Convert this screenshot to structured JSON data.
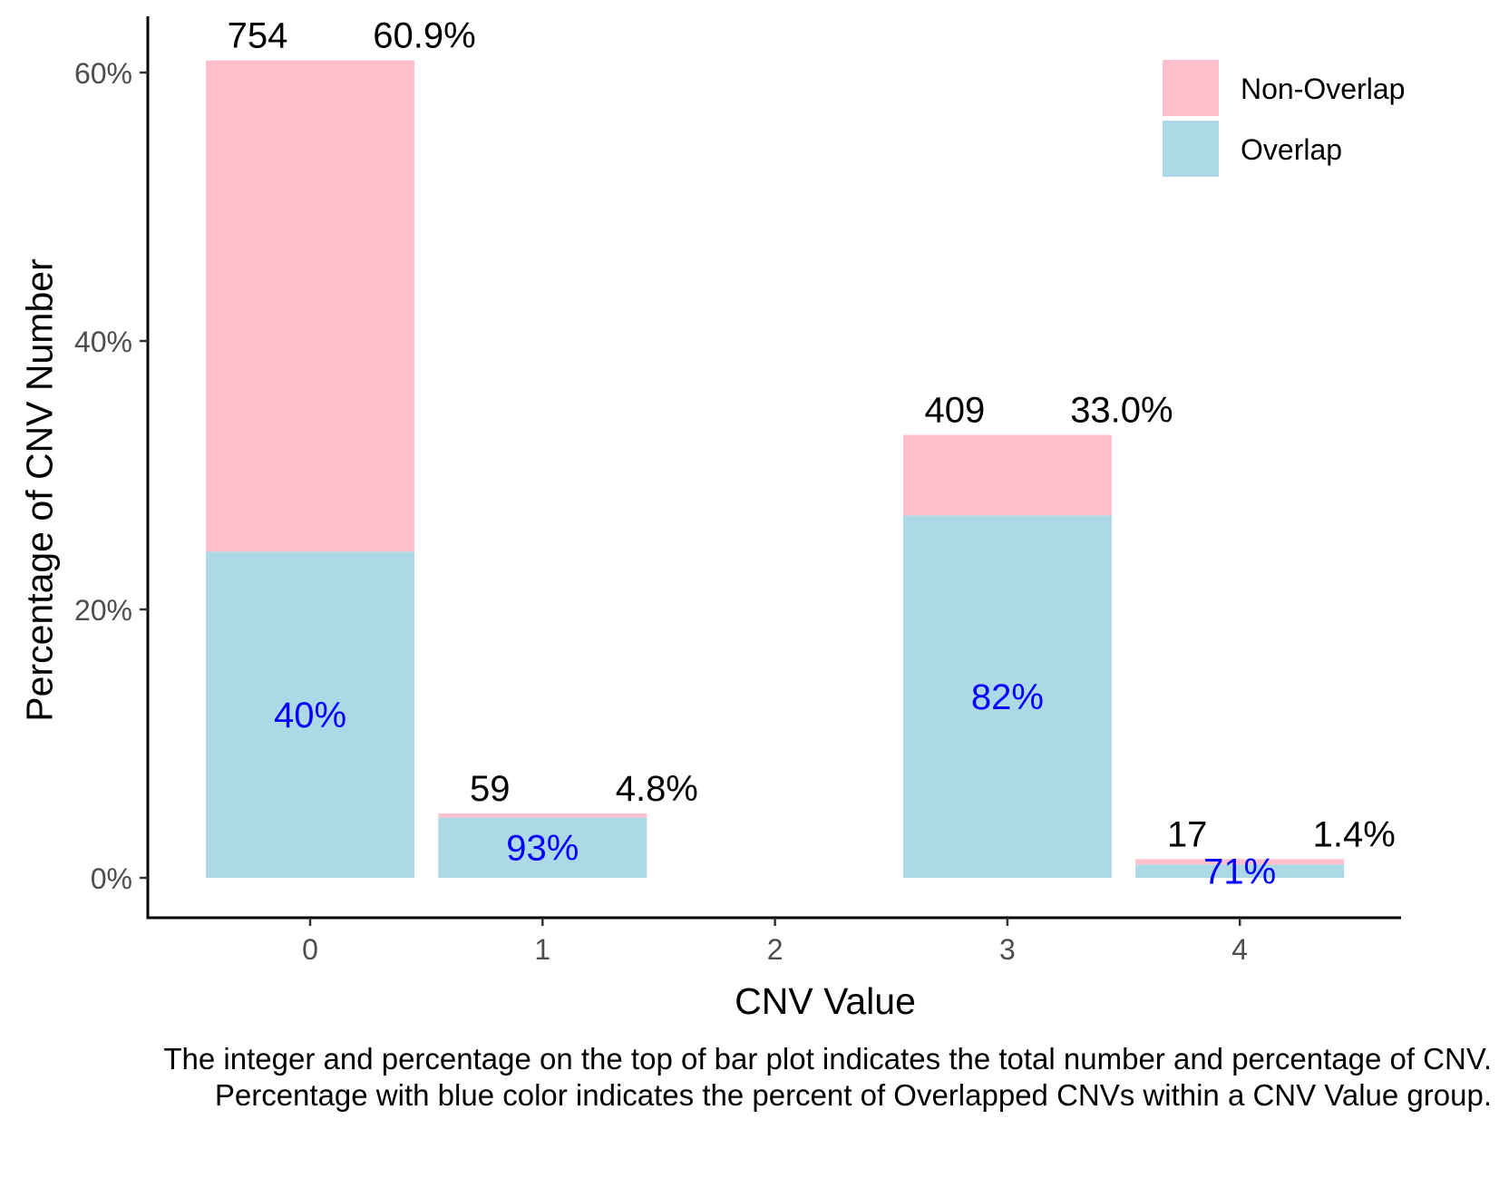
{
  "chart_data": {
    "type": "bar",
    "stacked": true,
    "categories": [
      "0",
      "1",
      "2",
      "3",
      "4"
    ],
    "series": [
      {
        "name": "Overlap",
        "color": "#ADD8E6",
        "values": [
          24.3,
          4.5,
          0,
          27.0,
          1.0
        ]
      },
      {
        "name": "Non-Overlap",
        "color": "#FFC0CB",
        "values": [
          36.6,
          0.3,
          0,
          6.0,
          0.4
        ]
      }
    ],
    "bar_totals": [
      {
        "category": "0",
        "count": "754",
        "percent": "60.9%",
        "total_value": 60.9,
        "overlap_label": "40%"
      },
      {
        "category": "1",
        "count": "59",
        "percent": "4.8%",
        "total_value": 4.8,
        "overlap_label": "93%"
      },
      {
        "category": "3",
        "count": "409",
        "percent": "33.0%",
        "total_value": 33.0,
        "overlap_label": "82%"
      },
      {
        "category": "4",
        "count": "17",
        "percent": "1.4%",
        "total_value": 1.4,
        "overlap_label": "71%"
      }
    ],
    "xlabel": "CNV Value",
    "ylabel": "Percentage of CNV Number",
    "ylim": [
      -3,
      64
    ],
    "yticks": [
      0,
      20,
      40,
      60
    ],
    "ytick_labels": [
      "0%",
      "20%",
      "40%",
      "60%"
    ],
    "xticks": [
      0,
      1,
      2,
      3,
      4
    ],
    "xtick_labels": [
      "0",
      "1",
      "2",
      "3",
      "4"
    ],
    "legend": {
      "placement": "top-right",
      "entries": [
        "Non-Overlap",
        "Overlap"
      ]
    },
    "grid": false,
    "label_color_overlap": "#0000FF"
  },
  "caption": {
    "line1": "The integer and percentage on the top of bar plot indicates the total number and percentage of CNV.",
    "line2": "Percentage with blue color indicates the percent of Overlapped CNVs within a CNV Value group."
  }
}
